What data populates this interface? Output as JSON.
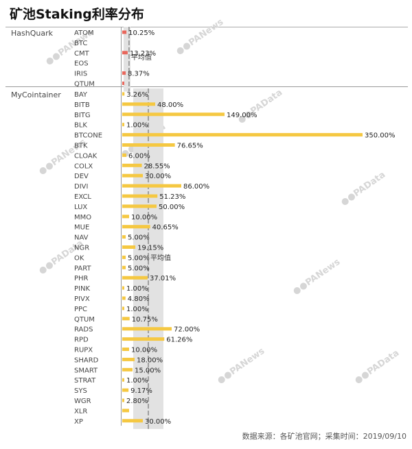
{
  "title": "矿池Staking利率分布",
  "footer": "数据来源：各矿池官网；采集时间：2019/09/10",
  "watermarks": [
    "PANews",
    "PAData"
  ],
  "colors": {
    "hashquark": "#e8675c",
    "mycointainer": "#f5c842",
    "band": "#e2e2e2",
    "avg_line": "#888888"
  },
  "chart_data": {
    "type": "bar",
    "orientation": "horizontal",
    "unit": "%",
    "average_label": "平均值",
    "groups": [
      {
        "name": "HashQuark",
        "color": "#e8675c",
        "average": 11.0,
        "items": [
          {
            "label": "ATOM",
            "value": 10.25,
            "text": "10.25%"
          },
          {
            "label": "BTC",
            "value": null,
            "text": ""
          },
          {
            "label": "CMT",
            "value": 13.23,
            "text": "13.23%"
          },
          {
            "label": "EOS",
            "value": null,
            "text": ""
          },
          {
            "label": "IRIS",
            "value": 8.37,
            "text": "8.37%"
          },
          {
            "label": "QTUM",
            "value": 1.0,
            "text": ""
          }
        ]
      },
      {
        "name": "MyCointainer",
        "color": "#f5c842",
        "average": 40.0,
        "items": [
          {
            "label": "BAY",
            "value": 3.26,
            "text": "3.26%"
          },
          {
            "label": "BITB",
            "value": 48.0,
            "text": "48.00%"
          },
          {
            "label": "BITG",
            "value": 149.0,
            "text": "149.00%"
          },
          {
            "label": "BLK",
            "value": 1.0,
            "text": "1.00%"
          },
          {
            "label": "BTCONE",
            "value": 350.0,
            "text": "350.00%"
          },
          {
            "label": "BTK",
            "value": 76.65,
            "text": "76.65%"
          },
          {
            "label": "CLOAK",
            "value": 6.0,
            "text": "6.00%"
          },
          {
            "label": "COLX",
            "value": 28.55,
            "text": "28.55%"
          },
          {
            "label": "DEV",
            "value": 30.0,
            "text": "30.00%"
          },
          {
            "label": "DIVI",
            "value": 86.0,
            "text": "86.00%"
          },
          {
            "label": "EXCL",
            "value": 51.23,
            "text": "51.23%"
          },
          {
            "label": "LUX",
            "value": 50.0,
            "text": "50.00%"
          },
          {
            "label": "MMO",
            "value": 10.0,
            "text": "10.00%"
          },
          {
            "label": "MUE",
            "value": 40.65,
            "text": "40.65%"
          },
          {
            "label": "NAV",
            "value": 5.0,
            "text": "5.00%"
          },
          {
            "label": "NGR",
            "value": 19.15,
            "text": "19.15%"
          },
          {
            "label": "OK",
            "value": 5.0,
            "text": "5.00%"
          },
          {
            "label": "PART",
            "value": 5.0,
            "text": "5.00%"
          },
          {
            "label": "PHR",
            "value": 37.01,
            "text": "37.01%"
          },
          {
            "label": "PINK",
            "value": 1.0,
            "text": "1.00%"
          },
          {
            "label": "PIVX",
            "value": 4.8,
            "text": "4.80%"
          },
          {
            "label": "PPC",
            "value": 1.0,
            "text": "1.00%"
          },
          {
            "label": "QTUM",
            "value": 10.75,
            "text": "10.75%"
          },
          {
            "label": "RADS",
            "value": 72.0,
            "text": "72.00%"
          },
          {
            "label": "RPD",
            "value": 61.26,
            "text": "61.26%"
          },
          {
            "label": "RUPX",
            "value": 10.0,
            "text": "10.00%"
          },
          {
            "label": "SHARD",
            "value": 18.0,
            "text": "18.00%"
          },
          {
            "label": "SMART",
            "value": 15.0,
            "text": "15.00%"
          },
          {
            "label": "STRAT",
            "value": 1.0,
            "text": "1.00%"
          },
          {
            "label": "SYS",
            "value": 9.17,
            "text": "9.17%"
          },
          {
            "label": "WGR",
            "value": 2.8,
            "text": "2.80%"
          },
          {
            "label": "XLR",
            "value": 10.0,
            "text": ""
          },
          {
            "label": "XP",
            "value": 30.0,
            "text": "30.00%"
          }
        ]
      }
    ]
  }
}
